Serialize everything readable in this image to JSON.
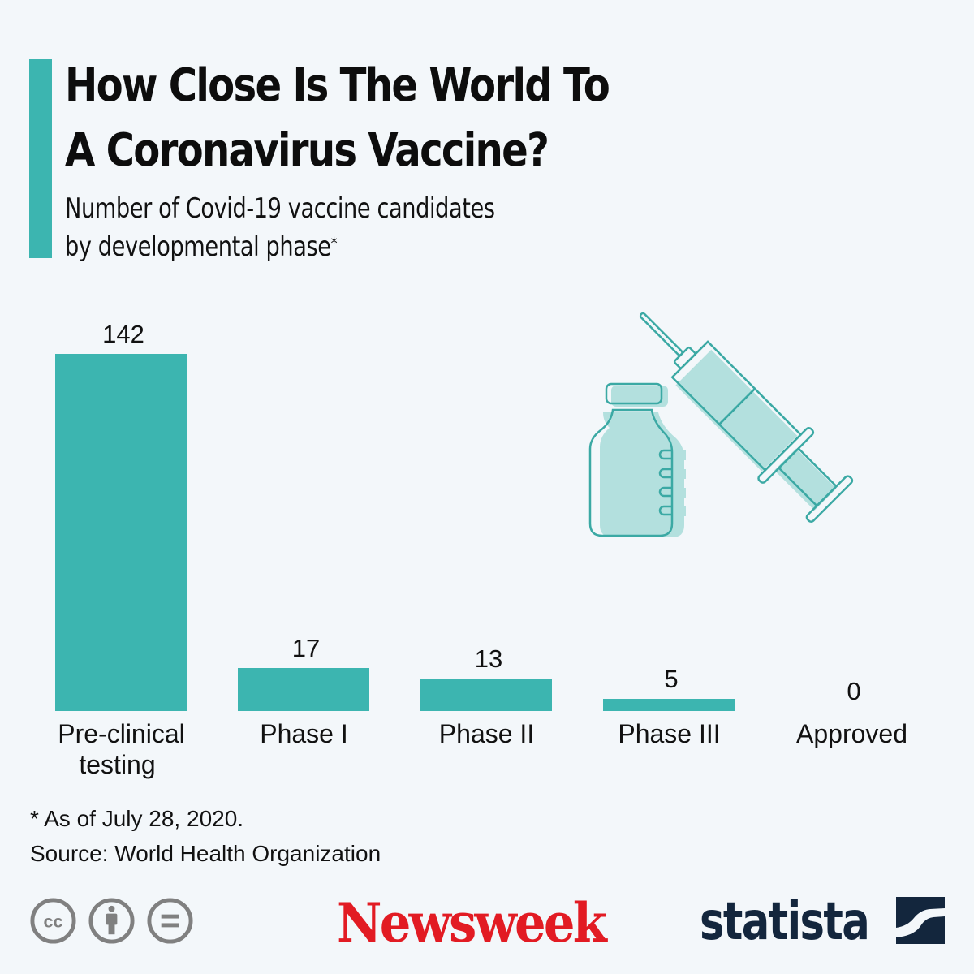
{
  "header": {
    "title_line1": "How Close Is The World To",
    "title_line2": "A Coronavirus Vaccine?",
    "subtitle_line1": "Number of Covid-19 vaccine candidates",
    "subtitle_line2": "by developmental phase",
    "subtitle_marker": "*"
  },
  "colors": {
    "accent": "#3cb5b0",
    "background": "#f3f7fa",
    "newsweek_red": "#e21b23",
    "statista_navy": "#13263d",
    "cc_gray": "#808080"
  },
  "chart_data": {
    "type": "bar",
    "title": "How Close Is The World To A Coronavirus Vaccine?",
    "subtitle": "Number of Covid-19 vaccine candidates by developmental phase*",
    "categories": [
      "Pre-clinical testing",
      "Phase I",
      "Phase II",
      "Phase III",
      "Approved"
    ],
    "values": [
      142,
      17,
      13,
      5,
      0
    ],
    "xlabel": "",
    "ylabel": "",
    "ylim": [
      0,
      142
    ],
    "grid": false,
    "legend": null,
    "data_labels": true
  },
  "bars": [
    {
      "category_line1": "Pre-clinical",
      "category_line2": "testing",
      "value": "142"
    },
    {
      "category_line1": "Phase I",
      "category_line2": "",
      "value": "17"
    },
    {
      "category_line1": "Phase II",
      "category_line2": "",
      "value": "13"
    },
    {
      "category_line1": "Phase III",
      "category_line2": "",
      "value": "5"
    },
    {
      "category_line1": "Approved",
      "category_line2": "",
      "value": "0"
    }
  ],
  "footer": {
    "footnote": "* As of July 28, 2020.",
    "source": "Source: World Health Organization",
    "brand_newsweek": "Newsweek",
    "brand_statista": "statista",
    "cc_icons": [
      "cc-icon",
      "attribution-icon",
      "no-derivatives-icon"
    ]
  }
}
